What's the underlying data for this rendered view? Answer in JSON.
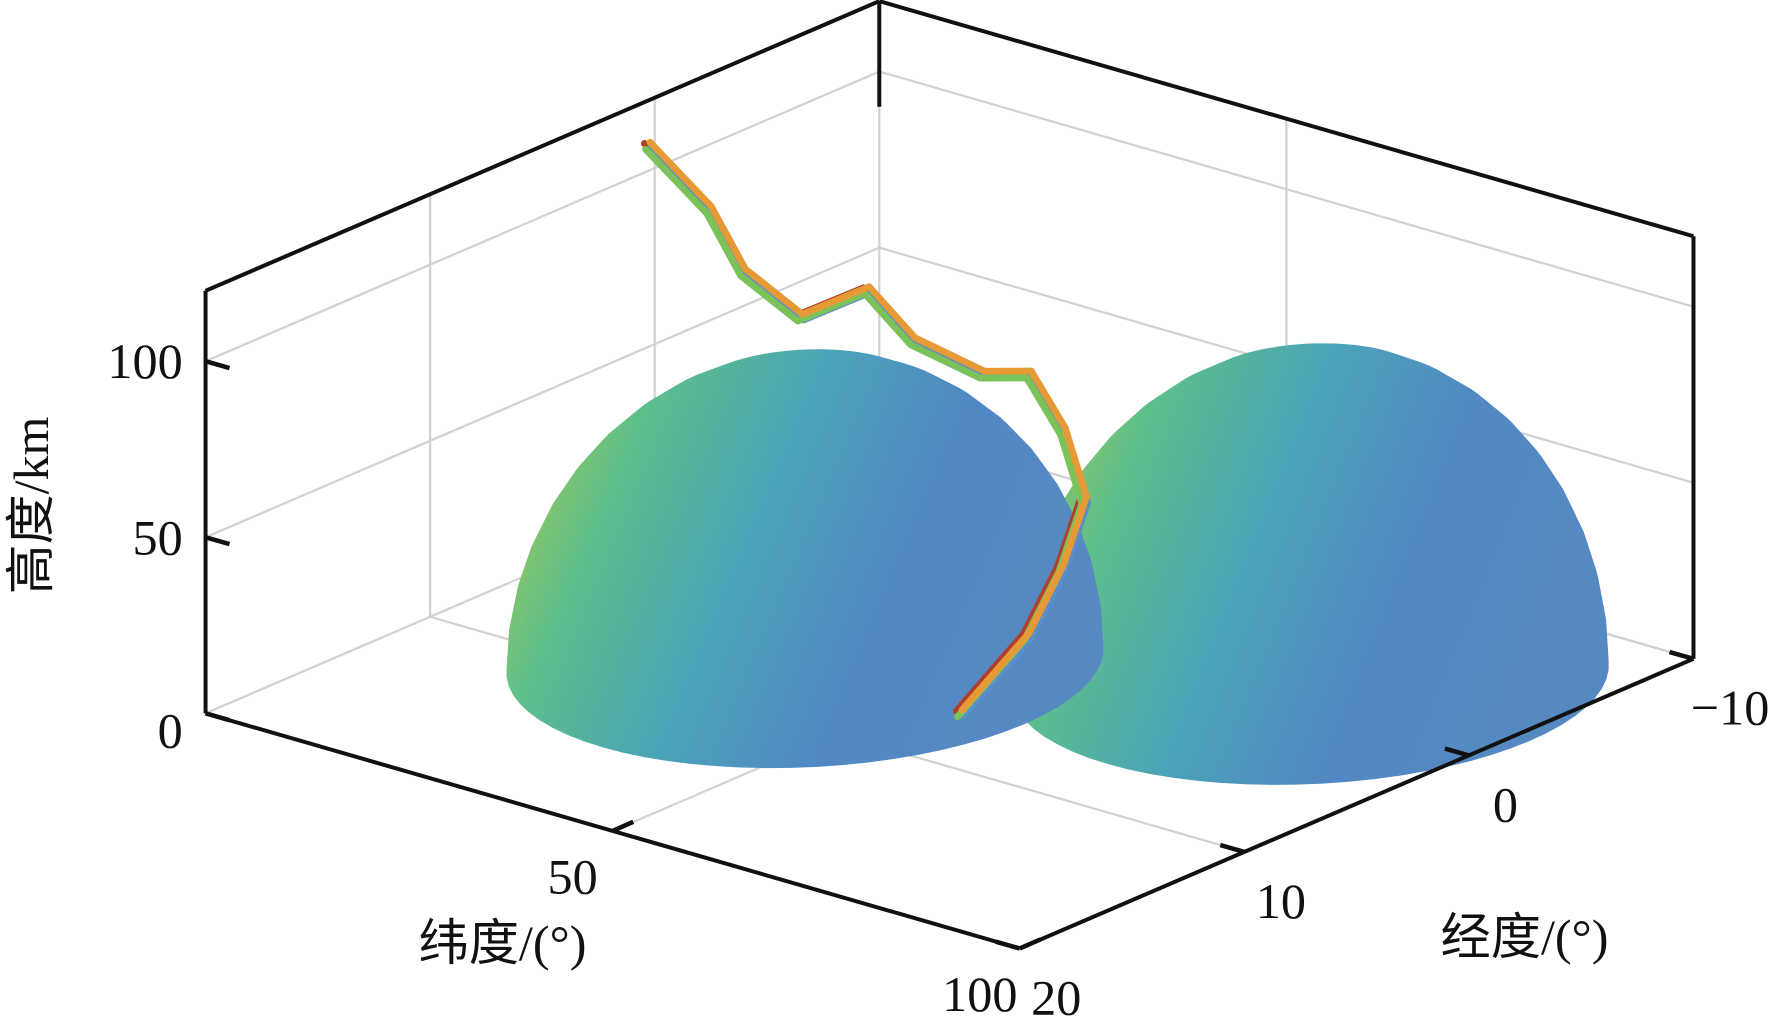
{
  "chart_data": {
    "type": "surface3d",
    "zlabel": "高度/km",
    "xlabel": "纬度/(°)",
    "ylabel": "经度/(°)",
    "xlim": [
      0,
      100
    ],
    "xticks": [
      50,
      100
    ],
    "ylim": [
      20,
      -10
    ],
    "yticks": [
      20,
      10,
      0,
      {
        "value": -10,
        "label": "−10"
      }
    ],
    "zlim": [
      0,
      120
    ],
    "zticks": [
      0,
      50,
      100
    ],
    "grid": true,
    "domes": [
      {
        "lat": 75,
        "lon": -2,
        "lat_radius": 27,
        "lon_radius": 9,
        "height": 90
      },
      {
        "lat": 35,
        "lon": 6,
        "lat_radius": 27,
        "lon_radius": 9,
        "height": 83
      }
    ],
    "dome_colors": [
      "#c3cc3c",
      "#5dbf8a",
      "#4aa3b8",
      "#5188c4",
      "#5689c2"
    ],
    "trajectory": {
      "lat": [
        7.7,
        14.1,
        18.3,
        24.2,
        24.4,
        31.7,
        38.3,
        39.9,
        44.9,
        52.2,
        54.9,
        56.2,
        55.4
      ],
      "lon": [
        3.1,
        2.7,
        2.7,
        2.3,
        -0.6,
        0,
        -0.7,
        -2.2,
        -1.9,
        -0.2,
        1.8,
        3.8,
        6.5
      ],
      "alt": [
        120,
        105,
        90,
        80,
        80,
        72,
        65,
        62,
        50,
        40,
        28,
        15,
        0
      ],
      "colors": [
        "#b0402c",
        "#5a8fcb",
        "#7cc25a",
        "#e59a36"
      ]
    }
  }
}
